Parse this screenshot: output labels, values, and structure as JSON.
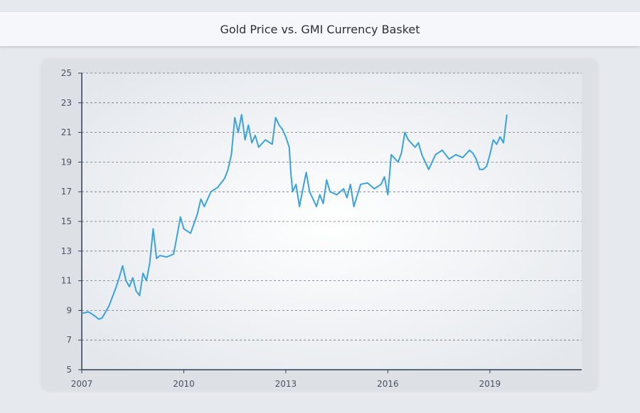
{
  "title": "Gold Price vs. GMI Currency Basket",
  "chart_data": {
    "type": "line",
    "title": "Gold Price vs. GMI Currency Basket",
    "xlabel": "",
    "ylabel": "",
    "xlim": [
      2007,
      2021.7
    ],
    "ylim": [
      5,
      25
    ],
    "grid": true,
    "x_ticks": [
      "2007",
      "2010",
      "2013",
      "2016",
      "2019"
    ],
    "y_ticks": [
      "5",
      "7",
      "9",
      "11",
      "13",
      "15",
      "17",
      "19",
      "21",
      "23",
      "25"
    ],
    "series_color": "#3aa3dd",
    "series": [
      {
        "x": [
          2007.0,
          2007.2,
          2007.4,
          2007.5,
          2007.6,
          2007.8,
          2007.9,
          2008.0,
          2008.1,
          2008.2,
          2008.3,
          2008.4,
          2008.5,
          2008.6,
          2008.7,
          2008.8,
          2008.9,
          2009.0,
          2009.1,
          2009.2,
          2009.3,
          2009.5,
          2009.7,
          2009.8,
          2009.9,
          2010.0,
          2010.2,
          2010.4,
          2010.5,
          2010.6,
          2010.8,
          2011.0,
          2011.2,
          2011.3,
          2011.4,
          2011.5,
          2011.6,
          2011.7,
          2011.8,
          2011.9,
          2012.0,
          2012.1,
          2012.2,
          2012.4,
          2012.6,
          2012.7,
          2012.8,
          2012.9,
          2013.0,
          2013.1,
          2013.15,
          2013.2,
          2013.3,
          2013.4,
          2013.5,
          2013.6,
          2013.7,
          2013.8,
          2013.9,
          2014.0,
          2014.1,
          2014.2,
          2014.3,
          2014.5,
          2014.7,
          2014.8,
          2014.9,
          2015.0,
          2015.2,
          2015.4,
          2015.6,
          2015.8,
          2015.9,
          2016.0,
          2016.1,
          2016.3,
          2016.4,
          2016.5,
          2016.6,
          2016.8,
          2016.9,
          2017.0,
          2017.2,
          2017.4,
          2017.6,
          2017.8,
          2018.0,
          2018.2,
          2018.4,
          2018.5,
          2018.6,
          2018.7,
          2018.8,
          2018.9,
          2019.0,
          2019.1,
          2019.2,
          2019.3,
          2019.4,
          2019.5
        ],
        "values": [
          8.8,
          8.9,
          8.6,
          8.4,
          8.5,
          9.3,
          9.9,
          10.5,
          11.2,
          12.0,
          11.0,
          10.6,
          11.2,
          10.3,
          10.0,
          11.5,
          11.0,
          12.2,
          14.5,
          12.5,
          12.7,
          12.6,
          12.8,
          14.0,
          15.3,
          14.5,
          14.2,
          15.5,
          16.5,
          16.0,
          17.0,
          17.3,
          17.9,
          18.5,
          19.5,
          22.0,
          21.0,
          22.2,
          20.5,
          21.5,
          20.3,
          20.8,
          20.0,
          20.5,
          20.2,
          22.0,
          21.5,
          21.2,
          20.7,
          20.0,
          18.2,
          17.0,
          17.5,
          16.0,
          17.2,
          18.3,
          17.0,
          16.5,
          16.0,
          16.8,
          16.2,
          17.8,
          17.0,
          16.8,
          17.2,
          16.6,
          17.5,
          16.0,
          17.5,
          17.6,
          17.2,
          17.5,
          18.0,
          16.8,
          19.5,
          19.0,
          19.6,
          21.0,
          20.5,
          20.0,
          20.3,
          19.5,
          18.5,
          19.5,
          19.8,
          19.2,
          19.5,
          19.3,
          19.8,
          19.6,
          19.2,
          18.5,
          18.5,
          18.7,
          19.5,
          20.5,
          20.2,
          20.7,
          20.3,
          22.2
        ]
      }
    ]
  }
}
